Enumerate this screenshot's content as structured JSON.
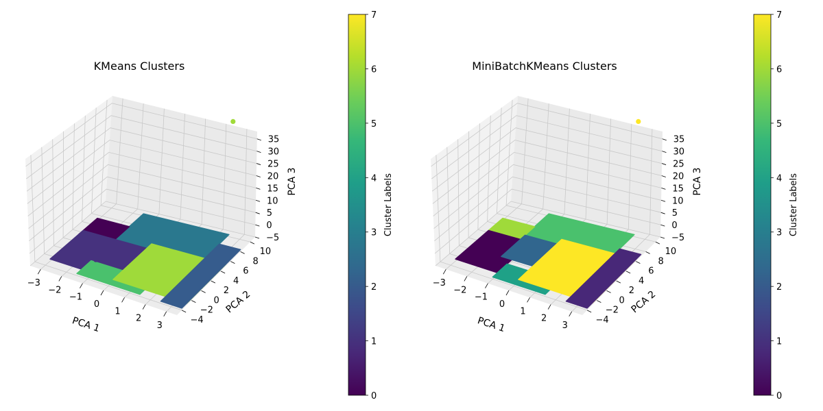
{
  "chart_data": [
    {
      "type": "scatter3d",
      "title": "KMeans Clusters",
      "xlabel": "PCA 1",
      "ylabel": "PCA 2",
      "zlabel": "PCA 3",
      "xticks": [
        "−3",
        "−2",
        "−1",
        "0",
        "1",
        "2",
        "3"
      ],
      "yticks": [
        "−4",
        "−2",
        "0",
        "2",
        "4",
        "6",
        "8",
        "10"
      ],
      "zticks": [
        "−5",
        "0",
        "5",
        "10",
        "15",
        "20",
        "25",
        "30",
        "35"
      ],
      "xlim": [
        -3.5,
        3.5
      ],
      "ylim": [
        -5,
        11
      ],
      "zlim": [
        -5,
        38
      ],
      "grid": true,
      "colormap": "viridis",
      "colorbar": {
        "label": "Cluster Labels",
        "ticks": [
          "0",
          "1",
          "2",
          "3",
          "4",
          "5",
          "6",
          "7"
        ],
        "min": 0,
        "max": 7
      },
      "regions": [
        {
          "cluster": 3,
          "color": "#2a788e",
          "x": [
            -1.5,
            2.5
          ],
          "y": [
            3,
            10
          ],
          "z": [
            -1,
            2
          ]
        },
        {
          "cluster": 0,
          "color": "#440154",
          "x": [
            -3,
            -1.5
          ],
          "y": [
            3,
            7
          ],
          "z": [
            -1,
            2
          ]
        },
        {
          "cluster": 1,
          "color": "#46327e",
          "x": [
            -3,
            0
          ],
          "y": [
            -3,
            4
          ],
          "z": [
            -1,
            2
          ]
        },
        {
          "cluster": 5,
          "color": "#4ac16d",
          "x": [
            -1.5,
            1.5
          ],
          "y": [
            -4,
            -1
          ],
          "z": [
            -1,
            2
          ]
        },
        {
          "cluster": 6,
          "color": "#9fda3a",
          "x": [
            0,
            3.5
          ],
          "y": [
            -3,
            5
          ],
          "z": [
            -1,
            2
          ]
        },
        {
          "cluster": 2,
          "color": "#365c8d",
          "x": [
            2.5,
            3.5
          ],
          "y": [
            -4,
            8
          ],
          "z": [
            -1,
            2
          ]
        }
      ],
      "outliers": [
        {
          "x": 3.0,
          "y": 11.0,
          "z": 36,
          "cluster": 6,
          "color": "#a0da39"
        },
        {
          "x": -2.8,
          "y": -3.5,
          "z": 0,
          "cluster": 1,
          "color": "#46327e"
        }
      ]
    },
    {
      "type": "scatter3d",
      "title": "MiniBatchKMeans Clusters",
      "xlabel": "PCA 1",
      "ylabel": "PCA 2",
      "zlabel": "PCA 3",
      "xticks": [
        "−3",
        "−2",
        "−1",
        "0",
        "1",
        "2",
        "3"
      ],
      "yticks": [
        "−4",
        "−2",
        "0",
        "2",
        "4",
        "6",
        "8",
        "10"
      ],
      "zticks": [
        "−5",
        "0",
        "5",
        "10",
        "15",
        "20",
        "25",
        "30",
        "35"
      ],
      "xlim": [
        -3.5,
        3.5
      ],
      "ylim": [
        -5,
        11
      ],
      "zlim": [
        -5,
        38
      ],
      "grid": true,
      "colormap": "viridis",
      "colorbar": {
        "label": "Cluster Labels",
        "ticks": [
          "0",
          "1",
          "2",
          "3",
          "4",
          "5",
          "6",
          "7"
        ],
        "min": 0,
        "max": 7
      },
      "regions": [
        {
          "cluster": 5,
          "color": "#4ac16d",
          "x": [
            -1.5,
            2.5
          ],
          "y": [
            3,
            10
          ],
          "z": [
            -1,
            2
          ]
        },
        {
          "cluster": 6,
          "color": "#9fda3a",
          "x": [
            -3,
            -1.5
          ],
          "y": [
            4,
            7
          ],
          "z": [
            -1,
            2
          ]
        },
        {
          "cluster": 0,
          "color": "#440154",
          "x": [
            -3,
            -1
          ],
          "y": [
            -3,
            4
          ],
          "z": [
            -1,
            2
          ]
        },
        {
          "cluster": 2,
          "color": "#31668e",
          "x": [
            -1.5,
            0.5
          ],
          "y": [
            0,
            5
          ],
          "z": [
            -1,
            2
          ]
        },
        {
          "cluster": 4,
          "color": "#1fa187",
          "x": [
            -1,
            1.5
          ],
          "y": [
            -4,
            -1
          ],
          "z": [
            -1,
            2
          ]
        },
        {
          "cluster": 7,
          "color": "#fde725",
          "x": [
            0,
            3.5
          ],
          "y": [
            -3,
            6
          ],
          "z": [
            -1,
            2
          ]
        },
        {
          "cluster": 1,
          "color": "#482878",
          "x": [
            2.5,
            3.5
          ],
          "y": [
            -4,
            7
          ],
          "z": [
            -1,
            2
          ]
        }
      ],
      "outliers": [
        {
          "x": 3.0,
          "y": 11.0,
          "z": 36,
          "cluster": 7,
          "color": "#fde725"
        },
        {
          "x": -2.8,
          "y": -3.5,
          "z": 0,
          "cluster": 0,
          "color": "#440154"
        }
      ]
    }
  ]
}
